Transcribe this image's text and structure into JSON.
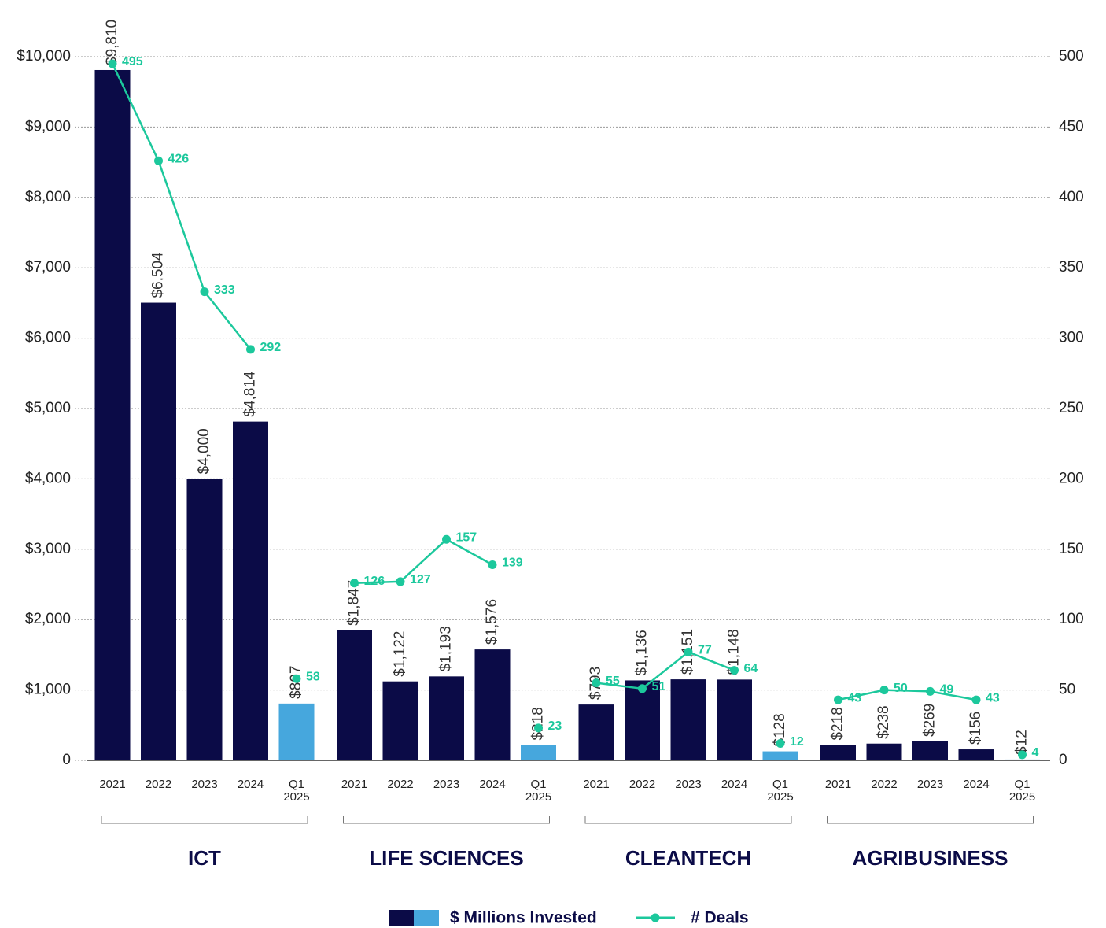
{
  "chart_data": {
    "type": "bar_line",
    "categories": [
      "2021",
      "2022",
      "2023",
      "2024",
      "Q1 2025",
      "2021",
      "2022",
      "2023",
      "2024",
      "Q1 2025",
      "2021",
      "2022",
      "2023",
      "2024",
      "Q1 2025",
      "2021",
      "2022",
      "2023",
      "2024",
      "Q1 2025"
    ],
    "groups": [
      "ICT",
      "LIFE SCIENCES",
      "CLEANTECH",
      "AGRIBUSINESS"
    ],
    "series": [
      {
        "name": "$ Millions Invested",
        "type": "bar",
        "colors": [
          "#0b0b47",
          "#0b0b47",
          "#0b0b47",
          "#0b0b47",
          "#46a7dd",
          "#0b0b47",
          "#0b0b47",
          "#0b0b47",
          "#0b0b47",
          "#46a7dd",
          "#0b0b47",
          "#0b0b47",
          "#0b0b47",
          "#0b0b47",
          "#46a7dd",
          "#0b0b47",
          "#0b0b47",
          "#0b0b47",
          "#0b0b47",
          "#46a7dd"
        ],
        "values": [
          9810,
          6504,
          4000,
          4814,
          807,
          1847,
          1122,
          1193,
          1576,
          218,
          793,
          1136,
          1151,
          1148,
          128,
          218,
          238,
          269,
          156,
          12
        ],
        "value_labels": [
          "$9,810",
          "$6,504",
          "$4,000",
          "$4,814",
          "$807",
          "$1,847",
          "$1,122",
          "$1,193",
          "$1,576",
          "$218",
          "$793",
          "$1,136",
          "$1,151",
          "$1,148",
          "$128",
          "$218",
          "$238",
          "$269",
          "$156",
          "$12"
        ]
      },
      {
        "name": "# Deals",
        "type": "line",
        "axis": "y2",
        "color": "#1cc89c",
        "values": [
          495,
          426,
          333,
          292,
          58,
          126,
          127,
          157,
          139,
          23,
          55,
          51,
          77,
          64,
          12,
          43,
          50,
          49,
          43,
          4
        ]
      }
    ],
    "ylim": [
      0,
      10000
    ],
    "yticks": [
      0,
      {
        "value": 1000,
        "label": "$1,000"
      },
      {
        "value": 2000,
        "label": "$2,000"
      },
      {
        "value": 3000,
        "label": "$3,000"
      },
      {
        "value": 4000,
        "label": "$4,000"
      },
      {
        "value": 5000,
        "label": "$5,000"
      },
      {
        "value": 6000,
        "label": "$6,000"
      },
      {
        "value": 7000,
        "label": "$7,000"
      },
      {
        "value": 8000,
        "label": "$8,000"
      },
      {
        "value": 9000,
        "label": "$9,000"
      },
      {
        "value": 10000,
        "label": "$10,000"
      }
    ],
    "y2lim": [
      0,
      500
    ],
    "y2ticks": [
      0,
      50,
      100,
      150,
      200,
      250,
      300,
      350,
      400,
      450,
      500
    ],
    "grid": true
  }
}
